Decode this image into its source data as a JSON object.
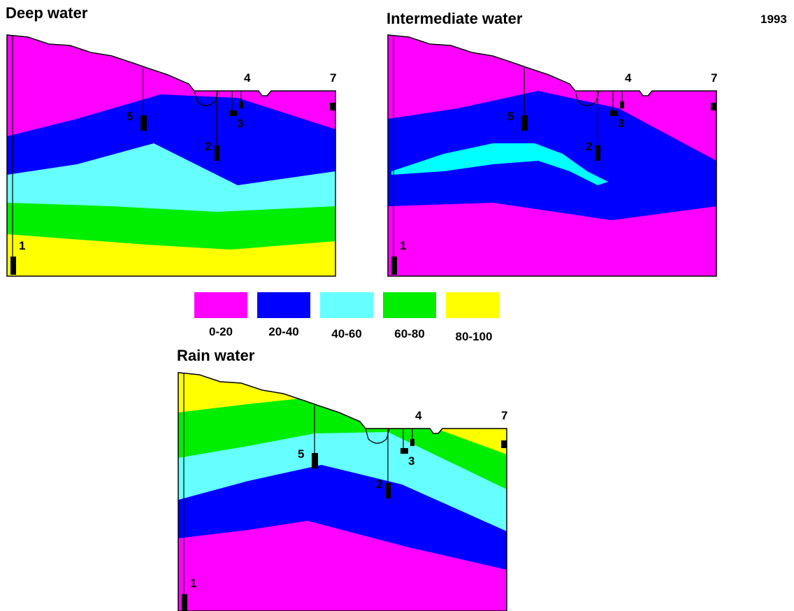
{
  "year": "1993",
  "panels": [
    {
      "title": "Deep water",
      "wells": [
        "1",
        "2",
        "3",
        "4",
        "5",
        "7"
      ]
    },
    {
      "title": "Intermediate water",
      "wells": [
        "1",
        "2",
        "3",
        "4",
        "5",
        "7"
      ]
    },
    {
      "title": "Rain water",
      "wells": [
        "1",
        "2",
        "3",
        "4",
        "5",
        "7"
      ]
    }
  ],
  "legend": [
    "0-20",
    "20-40",
    "40-60",
    "60-80",
    "80-100"
  ]
}
